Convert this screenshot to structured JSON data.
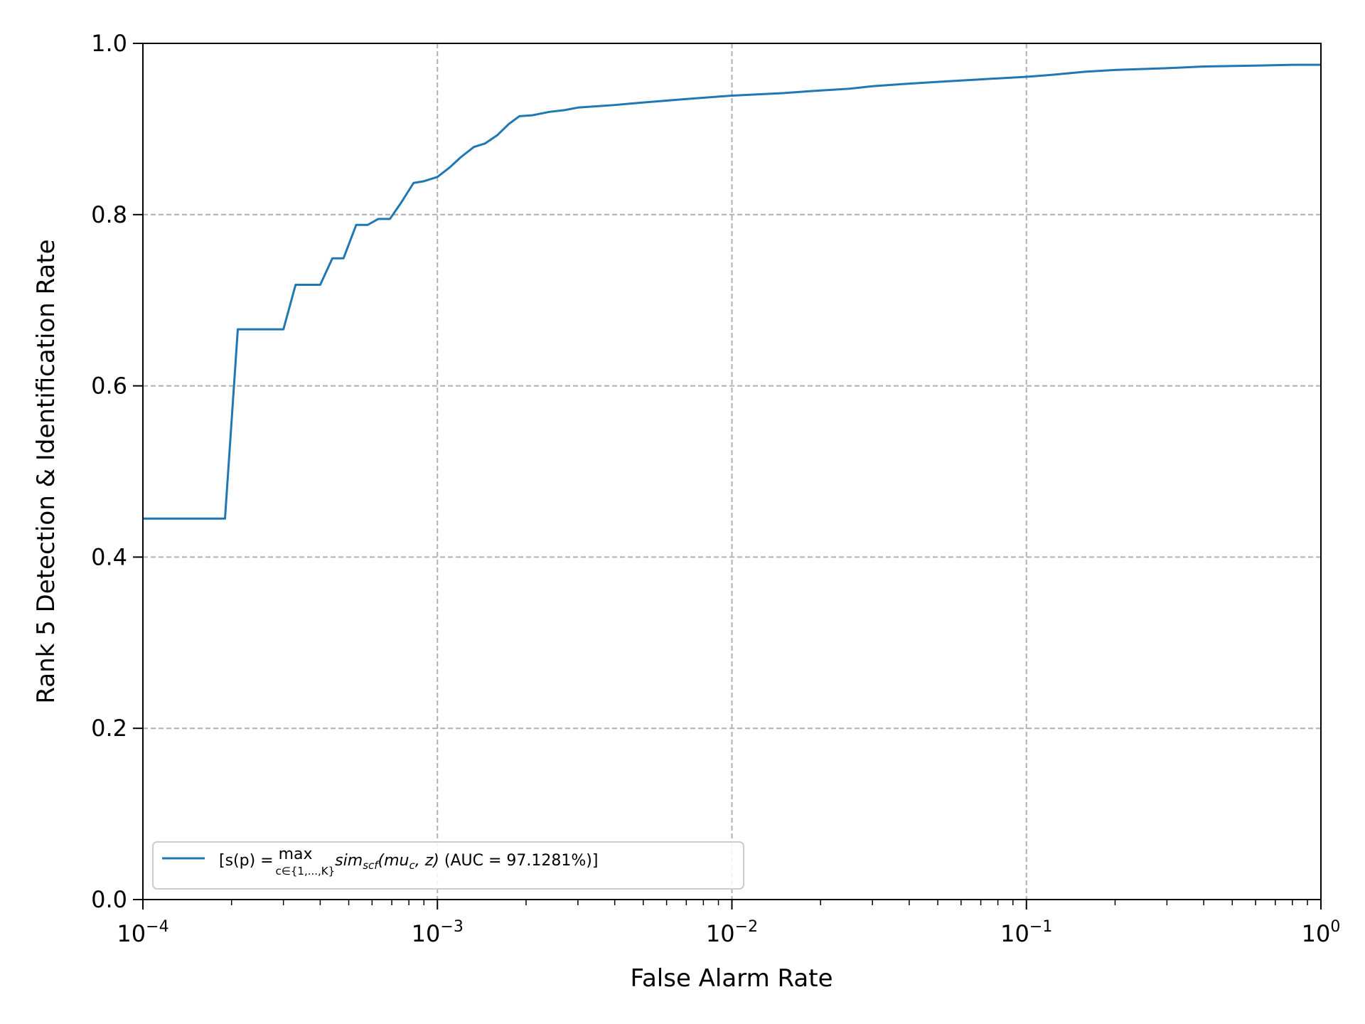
{
  "chart_data": {
    "type": "line",
    "title": "",
    "xlabel": "False Alarm Rate",
    "ylabel": "Rank 5 Detection & Identification Rate",
    "xscale": "log",
    "xlim": [
      0.0001,
      1
    ],
    "ylim": [
      0.0,
      1.0
    ],
    "grid": true,
    "grid_style": "dashed",
    "legend_position": "lower-left",
    "x_ticks": [
      {
        "value": 0.0001,
        "label": "10",
        "exp": "−4"
      },
      {
        "value": 0.001,
        "label": "10",
        "exp": "−3"
      },
      {
        "value": 0.01,
        "label": "10",
        "exp": "−2"
      },
      {
        "value": 0.1,
        "label": "10",
        "exp": "−1"
      },
      {
        "value": 1,
        "label": "10",
        "exp": "0"
      }
    ],
    "y_ticks": [
      {
        "value": 0.0,
        "label": "0.0"
      },
      {
        "value": 0.2,
        "label": "0.2"
      },
      {
        "value": 0.4,
        "label": "0.4"
      },
      {
        "value": 0.6,
        "label": "0.6"
      },
      {
        "value": 0.8,
        "label": "0.8"
      },
      {
        "value": 1.0,
        "label": "1.0"
      }
    ],
    "series": [
      {
        "name": "[s(p) = max c∈{1,...,K} sim_scf(mu_c, z) (AUC = 97.1281%)]",
        "color": "#1f77b4",
        "x": [
          0.0001,
          0.00019,
          0.00021,
          0.0003,
          0.00033,
          0.0004,
          0.00044,
          0.00048,
          0.00053,
          0.00058,
          0.00063,
          0.00069,
          0.00075,
          0.00083,
          0.0009,
          0.001,
          0.0011,
          0.0012,
          0.00133,
          0.00145,
          0.0016,
          0.00175,
          0.0019,
          0.0021,
          0.0024,
          0.0027,
          0.003,
          0.004,
          0.005,
          0.007,
          0.01,
          0.015,
          0.02,
          0.025,
          0.03,
          0.04,
          0.05,
          0.07,
          0.1,
          0.12,
          0.16,
          0.2,
          0.3,
          0.4,
          0.6,
          0.8,
          1.0
        ],
        "y": [
          0.445,
          0.445,
          0.666,
          0.666,
          0.718,
          0.718,
          0.749,
          0.749,
          0.788,
          0.788,
          0.795,
          0.795,
          0.813,
          0.837,
          0.839,
          0.844,
          0.855,
          0.867,
          0.879,
          0.883,
          0.893,
          0.906,
          0.915,
          0.916,
          0.92,
          0.922,
          0.925,
          0.928,
          0.931,
          0.935,
          0.939,
          0.942,
          0.945,
          0.947,
          0.95,
          0.953,
          0.955,
          0.958,
          0.961,
          0.963,
          0.967,
          0.969,
          0.971,
          0.973,
          0.974,
          0.975,
          0.975
        ]
      }
    ]
  },
  "legend": {
    "prefix": "[s(p) = ",
    "max_word": "max",
    "max_sub": "c∈{1,...,K}",
    "sim": "sim",
    "sim_sub": "scf",
    "args_open": "(mu",
    "args_sub": "c",
    "args_close": ", z)",
    "auc": " (AUC = 97.1281%)]"
  }
}
